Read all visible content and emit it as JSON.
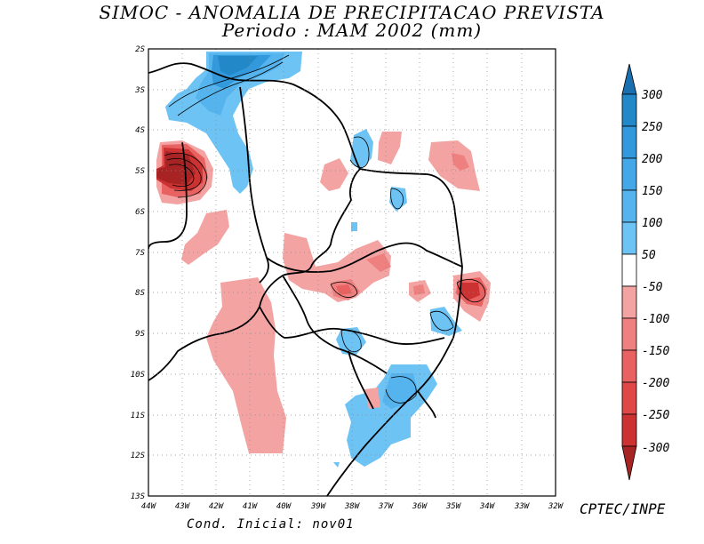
{
  "title": {
    "line1": "SIMOC -  ANOMALIA DE PRECIPITACAO PREVISTA",
    "line2": "Periodo : MAM 2002 (mm)"
  },
  "map": {
    "lat_labels": [
      "2S",
      "3S",
      "4S",
      "5S",
      "6S",
      "7S",
      "8S",
      "9S",
      "10S",
      "11S",
      "12S",
      "13S"
    ],
    "lon_labels": [
      "44W",
      "43W",
      "42W",
      "41W",
      "40W",
      "39W",
      "38W",
      "37W",
      "36W",
      "35W",
      "34W",
      "33W",
      "32W"
    ],
    "lat_range": [
      -13,
      -2
    ],
    "lon_range": [
      -44,
      -32
    ]
  },
  "colorbar": {
    "labels": [
      "300",
      "250",
      "200",
      "150",
      "100",
      "50",
      "-50",
      "-100",
      "-150",
      "-200",
      "-250",
      "-300"
    ],
    "colors": {
      "b6": "#1a6fae",
      "b5": "#2288c8",
      "b4": "#3399dd",
      "b3": "#44a8e8",
      "b2": "#55b4ee",
      "b1": "#6ec3f5",
      "neutral": "#ffffff",
      "r1": "#f4a3a3",
      "r2": "#ee8080",
      "r3": "#e86262",
      "r4": "#e04848",
      "r5": "#cc3232",
      "r6": "#a82424"
    }
  },
  "credit": "CPTEC/INPE",
  "initial_condition": "Cond. Inicial: nov01"
}
